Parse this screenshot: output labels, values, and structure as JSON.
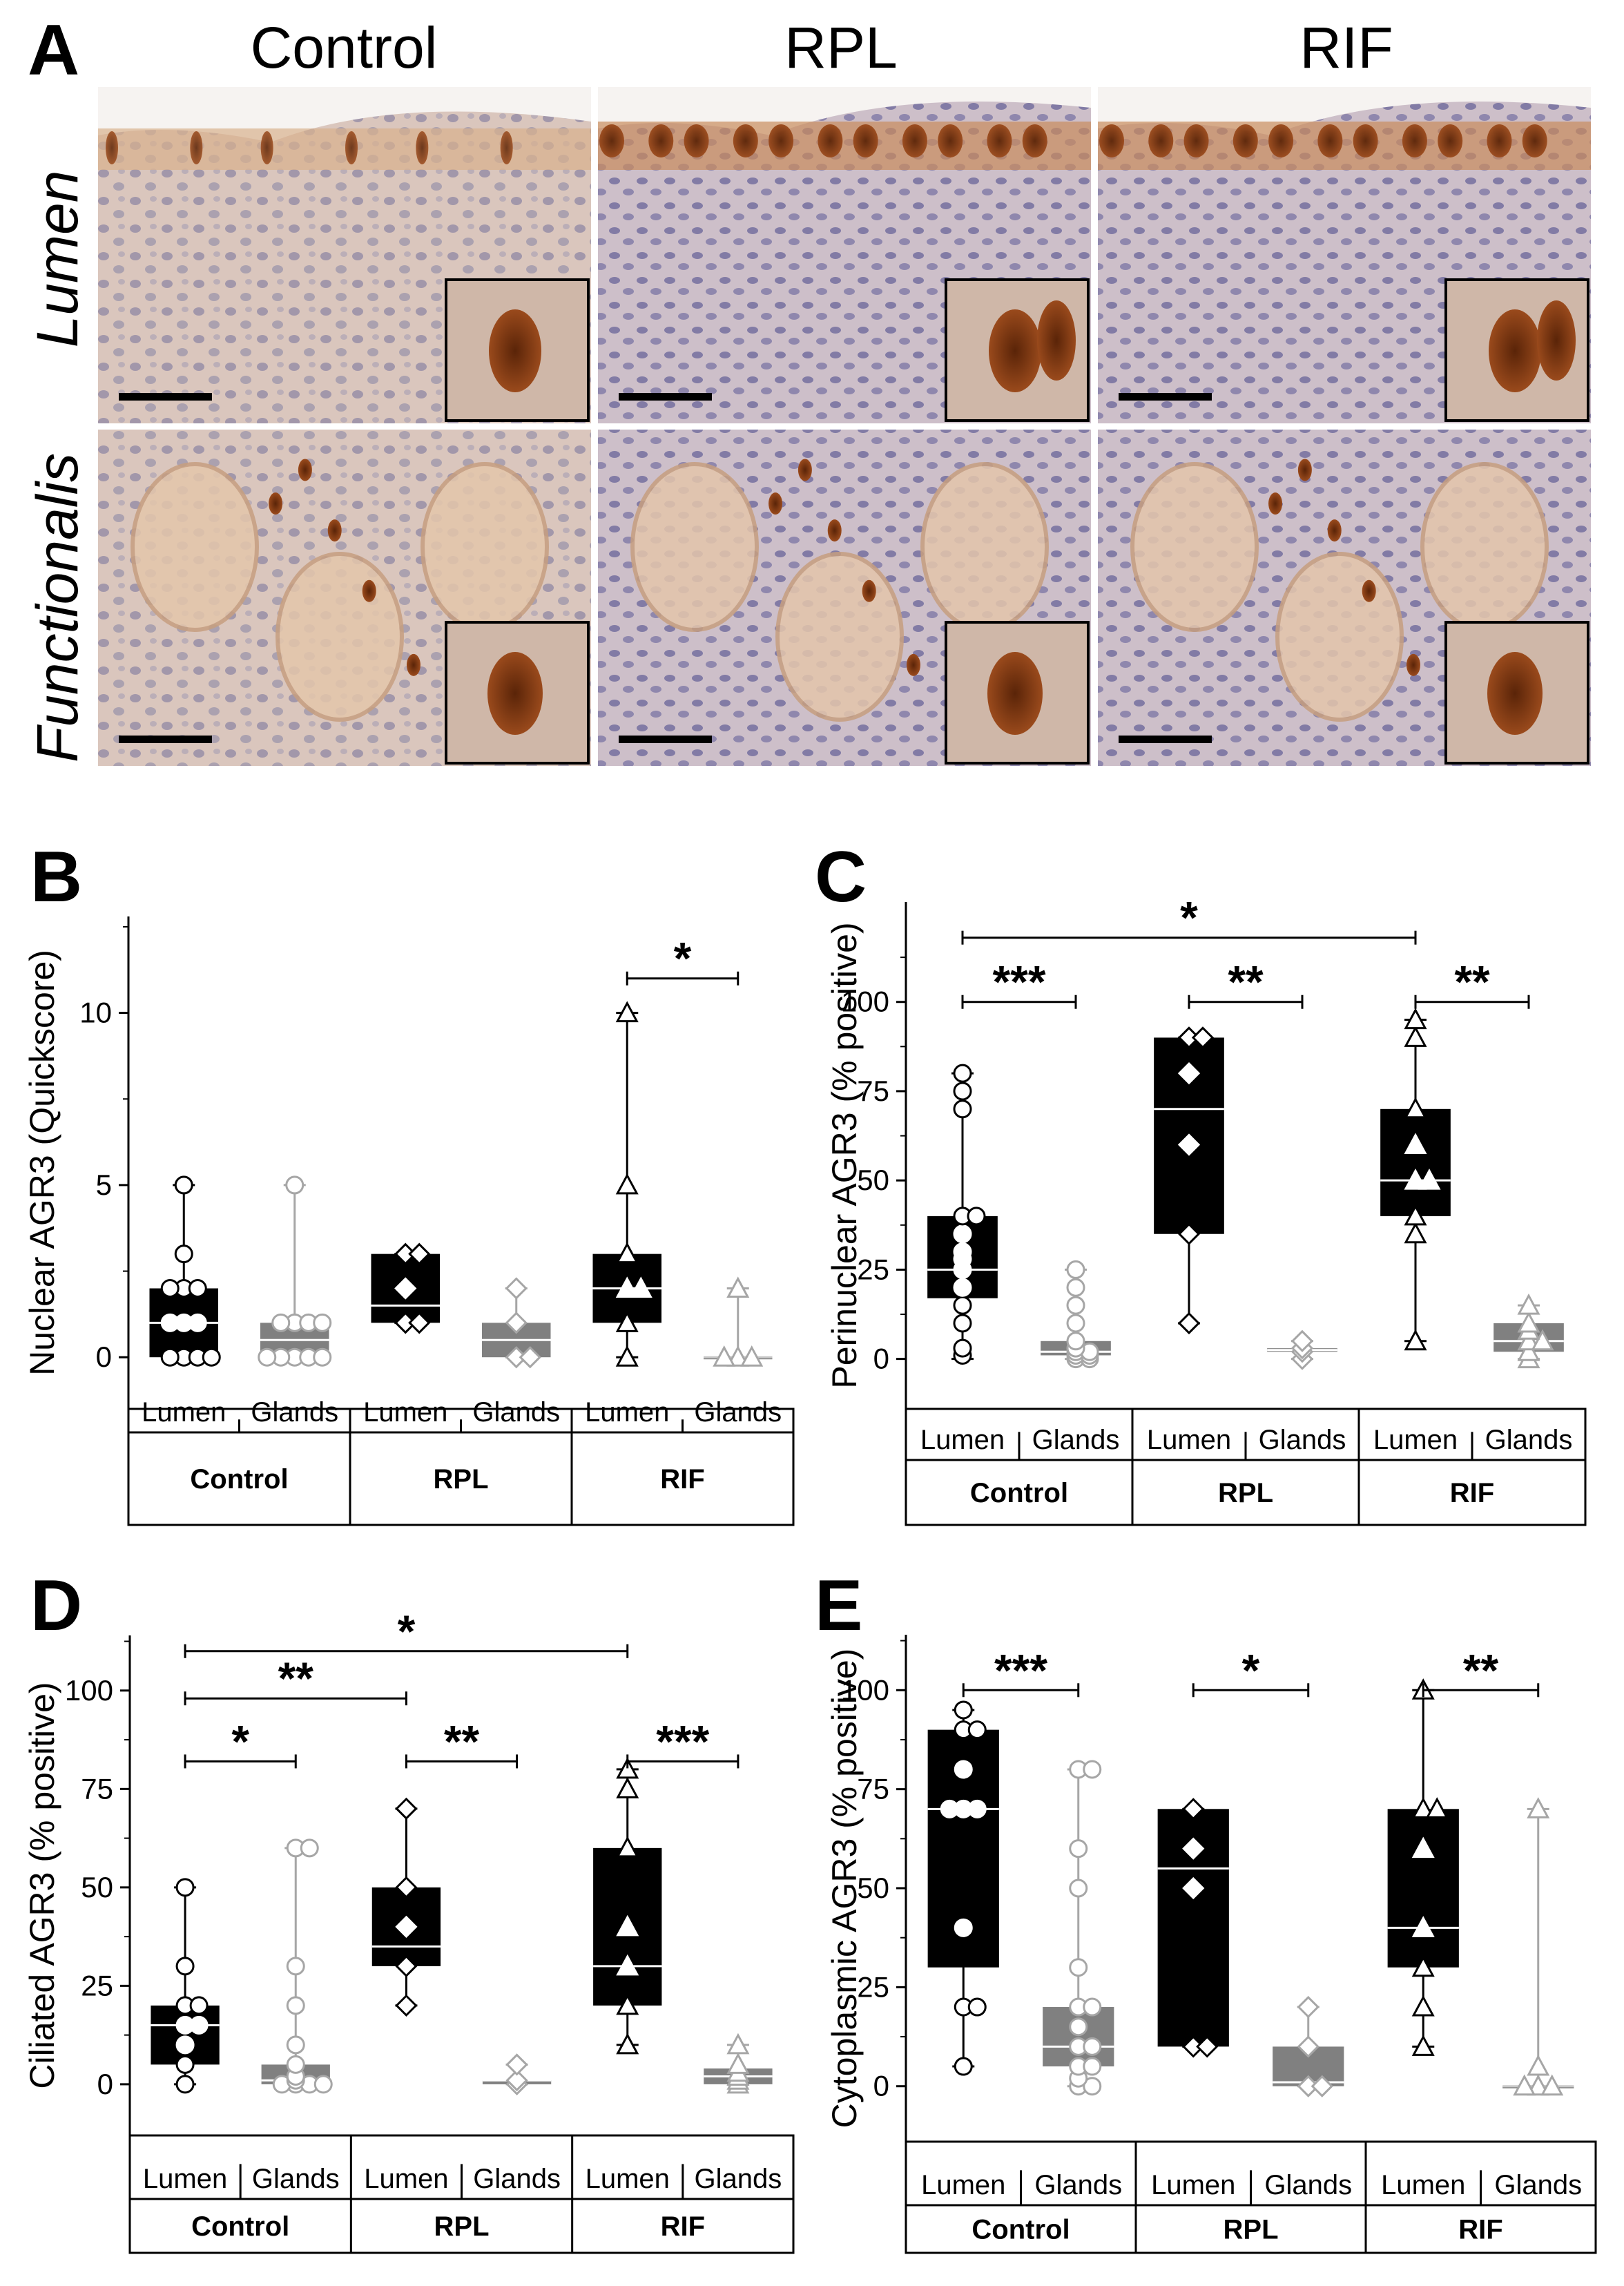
{
  "panel_a": {
    "letter": "A",
    "columns": [
      "Control",
      "RPL",
      "RIF"
    ],
    "rows": [
      "Lumen",
      "Functionalis"
    ]
  },
  "categories": [
    "Lumen",
    "Glands",
    "Lumen",
    "Glands",
    "Lumen",
    "Glands"
  ],
  "groups": [
    "Control",
    "RPL",
    "RIF"
  ],
  "colors": {
    "lumen_box": "#000000",
    "glands_box": "#808080",
    "glands_marker": "#a6a6a6"
  },
  "chart_data": [
    {
      "id": "B",
      "letter": "B",
      "type": "box",
      "ylabel": "Nuclear AGR3 (Quickscore)",
      "ylim": [
        -1.5,
        12.8
      ],
      "yticks": [
        0,
        5,
        10
      ],
      "boxes": [
        {
          "q1": 0,
          "median": 1,
          "q3": 2,
          "min": 0,
          "max": 5,
          "marker": "circle",
          "points": [
            0,
            0,
            0,
            0,
            1,
            1,
            1,
            2,
            2,
            2,
            3,
            5
          ]
        },
        {
          "q1": 0,
          "median": 0.5,
          "q3": 1,
          "min": 0,
          "max": 5,
          "marker": "circle",
          "points": [
            0,
            0,
            0,
            0,
            0,
            1,
            1,
            1,
            1,
            5
          ]
        },
        {
          "q1": 1,
          "median": 1.5,
          "q3": 3,
          "min": 1,
          "max": 3,
          "marker": "diamond",
          "points": [
            1,
            1,
            2,
            3,
            3
          ]
        },
        {
          "q1": 0,
          "median": 0.5,
          "q3": 1,
          "min": 0,
          "max": 2,
          "marker": "diamond",
          "points": [
            0,
            0,
            1,
            2
          ]
        },
        {
          "q1": 1,
          "median": 2,
          "q3": 3,
          "min": 0,
          "max": 10,
          "marker": "triangle",
          "points": [
            0,
            1,
            2,
            2,
            3,
            5,
            10
          ]
        },
        {
          "q1": 0,
          "median": 0,
          "q3": 0,
          "min": 0,
          "max": 2,
          "marker": "triangle",
          "points": [
            0,
            0,
            0,
            2
          ]
        }
      ],
      "significance": [
        {
          "from": 4,
          "to": 5,
          "y": 11,
          "label": "*"
        }
      ]
    },
    {
      "id": "C",
      "letter": "C",
      "type": "box",
      "ylabel": "Perinuclear AGR3 (% positive)",
      "ylim": [
        -14,
        128
      ],
      "yticks": [
        0,
        25,
        50,
        75,
        100
      ],
      "boxes": [
        {
          "q1": 17,
          "median": 25,
          "q3": 40,
          "min": 0,
          "max": 80,
          "marker": "circle",
          "points": [
            1,
            3,
            10,
            15,
            20,
            25,
            28,
            30,
            35,
            40,
            40,
            70,
            75,
            80
          ]
        },
        {
          "q1": 1,
          "median": 2,
          "q3": 5,
          "min": 0,
          "max": 25,
          "marker": "circle",
          "points": [
            0,
            0,
            1,
            1,
            2,
            2,
            3,
            5,
            10,
            15,
            20,
            25
          ]
        },
        {
          "q1": 35,
          "median": 70,
          "q3": 90,
          "min": 10,
          "max": 90,
          "marker": "diamond",
          "points": [
            10,
            35,
            60,
            80,
            90,
            90
          ]
        },
        {
          "q1": 2,
          "median": 2.5,
          "q3": 3,
          "min": 0,
          "max": 5,
          "marker": "diamond",
          "points": [
            0,
            2,
            3,
            5
          ]
        },
        {
          "q1": 40,
          "median": 50,
          "q3": 70,
          "min": 5,
          "max": 95,
          "marker": "triangle",
          "points": [
            5,
            35,
            40,
            50,
            50,
            60,
            70,
            90,
            95
          ]
        },
        {
          "q1": 2,
          "median": 5,
          "q3": 10,
          "min": 0,
          "max": 15,
          "marker": "triangle",
          "points": [
            0,
            2,
            5,
            5,
            8,
            10,
            15
          ]
        }
      ],
      "significance": [
        {
          "from": 0,
          "to": 4,
          "y": 118,
          "label": "*"
        },
        {
          "from": 0,
          "to": 1,
          "y": 100,
          "label": "***"
        },
        {
          "from": 2,
          "to": 3,
          "y": 100,
          "label": "**"
        },
        {
          "from": 4,
          "to": 5,
          "y": 100,
          "label": "**"
        }
      ]
    },
    {
      "id": "D",
      "letter": "D",
      "type": "box",
      "ylabel": "Ciliated AGR3 (% positive)",
      "ylim": [
        -13,
        114
      ],
      "yticks": [
        0,
        25,
        50,
        75,
        100
      ],
      "boxes": [
        {
          "q1": 5,
          "median": 15,
          "q3": 20,
          "min": 0,
          "max": 50,
          "marker": "circle",
          "points": [
            0,
            5,
            10,
            15,
            15,
            20,
            20,
            30,
            50
          ]
        },
        {
          "q1": 0,
          "median": 1,
          "q3": 5,
          "min": 0,
          "max": 60,
          "marker": "circle",
          "points": [
            0,
            0,
            0,
            0,
            1,
            2,
            5,
            10,
            20,
            30,
            60,
            60
          ]
        },
        {
          "q1": 30,
          "median": 35,
          "q3": 50,
          "min": 20,
          "max": 70,
          "marker": "diamond",
          "points": [
            20,
            30,
            40,
            50,
            70
          ]
        },
        {
          "q1": 0,
          "median": 1,
          "q3": 1,
          "min": 0,
          "max": 5,
          "marker": "diamond",
          "points": [
            0,
            1,
            5
          ]
        },
        {
          "q1": 20,
          "median": 30,
          "q3": 60,
          "min": 10,
          "max": 80,
          "marker": "triangle",
          "points": [
            10,
            20,
            30,
            40,
            60,
            75,
            80
          ]
        },
        {
          "q1": 0,
          "median": 2,
          "q3": 4,
          "min": 0,
          "max": 10,
          "marker": "triangle",
          "points": [
            0,
            1,
            2,
            3,
            5,
            10
          ]
        }
      ],
      "significance": [
        {
          "from": 0,
          "to": 4,
          "y": 110,
          "label": "*"
        },
        {
          "from": 0,
          "to": 2,
          "y": 98,
          "label": "**"
        },
        {
          "from": 0,
          "to": 1,
          "y": 82,
          "label": "*"
        },
        {
          "from": 2,
          "to": 3,
          "y": 82,
          "label": "**"
        },
        {
          "from": 4,
          "to": 5,
          "y": 82,
          "label": "***"
        }
      ]
    },
    {
      "id": "E",
      "letter": "E",
      "type": "box",
      "ylabel": "Cytoplasmic AGR3 (% positive)",
      "ylim": [
        -14,
        114
      ],
      "yticks": [
        0,
        25,
        50,
        75,
        100
      ],
      "boxes": [
        {
          "q1": 30,
          "median": 70,
          "q3": 90,
          "min": 5,
          "max": 95,
          "marker": "circle",
          "points": [
            5,
            20,
            20,
            40,
            70,
            70,
            70,
            80,
            90,
            90,
            95
          ]
        },
        {
          "q1": 5,
          "median": 10,
          "q3": 20,
          "min": 0,
          "max": 80,
          "marker": "circle",
          "points": [
            0,
            0,
            2,
            5,
            5,
            10,
            10,
            15,
            20,
            20,
            30,
            50,
            60,
            80,
            80
          ]
        },
        {
          "q1": 10,
          "median": 55,
          "q3": 70,
          "min": 10,
          "max": 70,
          "marker": "diamond",
          "points": [
            10,
            10,
            50,
            60,
            70
          ]
        },
        {
          "q1": 0,
          "median": 1,
          "q3": 10,
          "min": 0,
          "max": 20,
          "marker": "diamond",
          "points": [
            0,
            0,
            10,
            20
          ]
        },
        {
          "q1": 30,
          "median": 40,
          "q3": 70,
          "min": 10,
          "max": 100,
          "marker": "triangle",
          "points": [
            10,
            20,
            30,
            40,
            60,
            70,
            70,
            100
          ]
        },
        {
          "q1": 0,
          "median": 0,
          "q3": 0,
          "min": 0,
          "max": 70,
          "marker": "triangle",
          "points": [
            0,
            0,
            0,
            5,
            70
          ]
        }
      ],
      "significance": [
        {
          "from": 0,
          "to": 1,
          "y": 100,
          "label": "***"
        },
        {
          "from": 2,
          "to": 3,
          "y": 100,
          "label": "*"
        },
        {
          "from": 4,
          "to": 5,
          "y": 100,
          "label": "**"
        }
      ]
    }
  ]
}
